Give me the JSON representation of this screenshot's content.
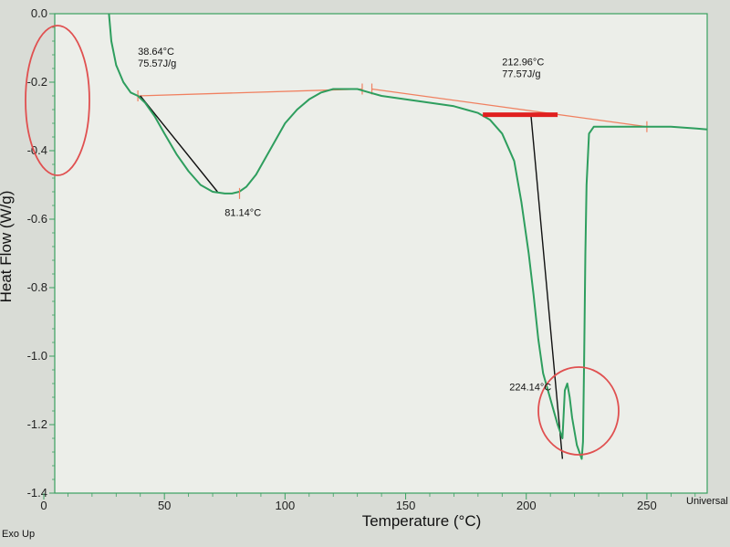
{
  "chart_data": {
    "type": "line",
    "xlabel": "Temperature (°C)",
    "ylabel": "Heat Flow (W/g)",
    "xlim": [
      0,
      275
    ],
    "ylim": [
      -1.4,
      0.0
    ],
    "x_ticks": [
      "0",
      "50",
      "100",
      "150",
      "200",
      "250"
    ],
    "y_ticks": [
      "0.0",
      "-0.2",
      "-0.4",
      "-0.6",
      "-0.8",
      "-1.0",
      "-1.2",
      "-1.4"
    ],
    "corner_bottom_left": "Exo Up",
    "corner_bottom_right": "Universal",
    "colors": {
      "curve": "#2e9e5e",
      "baseline": "#f08060",
      "tangent": "#111111",
      "marker": "#e02020",
      "circle": "#e05050"
    },
    "series": [
      {
        "x": [
          27,
          28,
          30,
          33,
          36,
          39,
          42,
          46,
          50,
          55,
          60,
          65,
          70,
          75,
          78,
          81,
          84,
          88,
          92,
          96,
          100,
          105,
          110,
          115,
          120,
          125,
          130,
          135,
          140,
          145,
          150,
          155,
          160,
          165,
          170,
          175,
          180,
          185,
          190,
          195,
          198,
          201,
          203,
          205,
          207,
          209,
          211,
          213,
          215,
          216,
          217,
          218,
          219,
          220,
          221,
          222,
          223,
          223.5,
          224,
          224.5,
          225,
          226,
          228,
          232,
          240,
          250,
          260,
          270,
          278
        ],
        "y": [
          0.0,
          -0.08,
          -0.15,
          -0.2,
          -0.23,
          -0.24,
          -0.26,
          -0.3,
          -0.35,
          -0.41,
          -0.46,
          -0.5,
          -0.52,
          -0.525,
          -0.525,
          -0.52,
          -0.505,
          -0.47,
          -0.42,
          -0.37,
          -0.32,
          -0.28,
          -0.25,
          -0.23,
          -0.22,
          -0.22,
          -0.22,
          -0.23,
          -0.24,
          -0.245,
          -0.25,
          -0.255,
          -0.26,
          -0.265,
          -0.27,
          -0.28,
          -0.29,
          -0.31,
          -0.35,
          -0.43,
          -0.55,
          -0.7,
          -0.82,
          -0.95,
          -1.05,
          -1.1,
          -1.15,
          -1.2,
          -1.24,
          -1.1,
          -1.08,
          -1.12,
          -1.18,
          -1.22,
          -1.26,
          -1.28,
          -1.3,
          -1.25,
          -1.0,
          -0.7,
          -0.5,
          -0.35,
          -0.33,
          -0.33,
          -0.33,
          -0.33,
          -0.33,
          -0.335,
          -0.34
        ]
      }
    ],
    "baselines": [
      {
        "x": [
          39,
          132
        ],
        "y": [
          -0.24,
          -0.22
        ]
      },
      {
        "x": [
          136,
          250
        ],
        "y": [
          -0.22,
          -0.33
        ]
      }
    ],
    "tangent_lines": [
      {
        "x": [
          40,
          72
        ],
        "y": [
          -0.24,
          -0.52
        ]
      },
      {
        "x": [
          202,
          215
        ],
        "y": [
          -0.3,
          -1.3
        ]
      }
    ],
    "markers": [
      {
        "x": [
          182,
          213
        ],
        "y": [
          -0.295,
          -0.295
        ]
      }
    ],
    "annotations": [
      {
        "lines": [
          "38.64°C",
          "75.57J/g"
        ],
        "x": 39,
        "y": -0.12
      },
      {
        "lines": [
          "81.14°C"
        ],
        "x": 75,
        "y": -0.59
      },
      {
        "lines": [
          "212.96°C",
          "77.57J/g"
        ],
        "x": 190,
        "y": -0.15
      },
      {
        "lines": [
          "224.14°C"
        ],
        "x": 193,
        "y": -1.1
      }
    ]
  }
}
